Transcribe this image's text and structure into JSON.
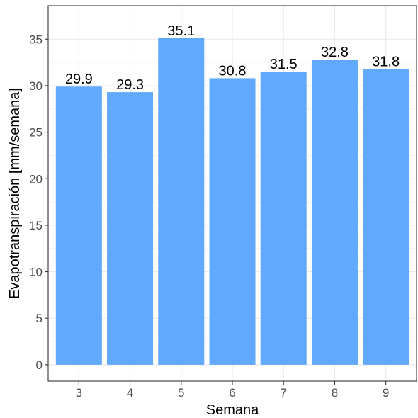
{
  "chart_data": {
    "type": "bar",
    "categories": [
      "3",
      "4",
      "5",
      "6",
      "7",
      "8",
      "9"
    ],
    "values": [
      29.9,
      29.3,
      35.1,
      30.8,
      31.5,
      32.8,
      31.8
    ],
    "data_labels": [
      "29.9",
      "29.3",
      "35.1",
      "30.8",
      "31.5",
      "32.8",
      "31.8"
    ],
    "xlabel": "Semana",
    "ylabel": "Evapotranspiración [mm/semana]",
    "ylim": [
      -1.76,
      38.6
    ],
    "yticks": [
      0,
      5,
      10,
      15,
      20,
      25,
      30,
      35
    ],
    "ytick_labels": [
      "0",
      "5",
      "10",
      "15",
      "20",
      "25",
      "30",
      "35"
    ],
    "grid": true,
    "legend": "none",
    "colors": {
      "bar": "#61a8ff",
      "grid": "#ebebeb",
      "panel_border": "#333333",
      "tick_text": "#4d4d4d",
      "text": "#000000"
    }
  }
}
